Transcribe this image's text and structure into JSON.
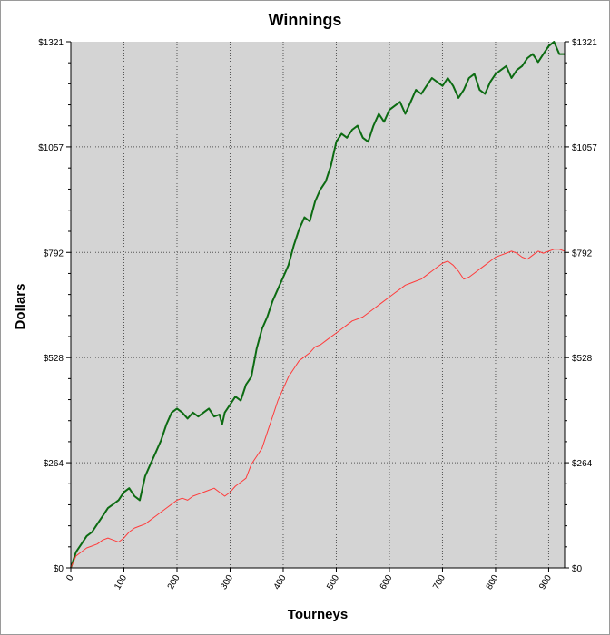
{
  "chart_data": {
    "type": "line",
    "title": "Winnings",
    "xlabel": "Tourneys",
    "ylabel": "Dollars",
    "xlim": [
      0,
      930
    ],
    "ylim": [
      0,
      1321
    ],
    "x_ticks": [
      0,
      100,
      200,
      300,
      400,
      500,
      600,
      700,
      800,
      900
    ],
    "y_ticks": [
      0,
      264,
      528,
      792,
      1057,
      1321
    ],
    "y_tick_labels": [
      "$0",
      "$264",
      "$528",
      "$792",
      "$1057",
      "$1321"
    ],
    "grid": true,
    "plot_background": "#d4d4d4",
    "series": [
      {
        "color": "#0c6b12",
        "x": [
          0,
          10,
          20,
          30,
          40,
          50,
          60,
          70,
          80,
          90,
          100,
          110,
          120,
          130,
          140,
          150,
          160,
          170,
          180,
          190,
          200,
          210,
          220,
          230,
          240,
          250,
          260,
          270,
          280,
          285,
          290,
          300,
          310,
          320,
          330,
          340,
          350,
          360,
          370,
          380,
          390,
          400,
          410,
          420,
          430,
          440,
          450,
          460,
          470,
          480,
          490,
          500,
          510,
          520,
          530,
          540,
          550,
          560,
          570,
          580,
          590,
          600,
          610,
          620,
          630,
          640,
          650,
          660,
          670,
          680,
          690,
          700,
          710,
          720,
          730,
          740,
          750,
          760,
          770,
          780,
          790,
          800,
          810,
          820,
          830,
          840,
          850,
          860,
          870,
          880,
          890,
          900,
          910,
          920,
          930
        ],
        "values": [
          0,
          40,
          60,
          80,
          90,
          110,
          130,
          150,
          160,
          170,
          190,
          200,
          180,
          170,
          230,
          260,
          290,
          320,
          360,
          390,
          400,
          390,
          375,
          390,
          380,
          390,
          400,
          380,
          385,
          360,
          390,
          410,
          430,
          420,
          460,
          480,
          550,
          600,
          630,
          670,
          700,
          730,
          760,
          810,
          850,
          880,
          870,
          920,
          950,
          970,
          1010,
          1070,
          1090,
          1080,
          1100,
          1110,
          1080,
          1070,
          1110,
          1140,
          1120,
          1150,
          1160,
          1170,
          1140,
          1170,
          1200,
          1190,
          1210,
          1230,
          1220,
          1210,
          1230,
          1210,
          1180,
          1200,
          1230,
          1240,
          1200,
          1190,
          1220,
          1240,
          1250,
          1260,
          1230,
          1250,
          1260,
          1280,
          1290,
          1270,
          1290,
          1310,
          1321,
          1290,
          1290
        ]
      },
      {
        "color": "#ff3b3b",
        "x": [
          0,
          10,
          20,
          30,
          40,
          50,
          60,
          70,
          80,
          90,
          100,
          110,
          120,
          130,
          140,
          150,
          160,
          170,
          180,
          190,
          200,
          210,
          220,
          230,
          240,
          250,
          260,
          270,
          280,
          290,
          300,
          310,
          320,
          330,
          340,
          350,
          360,
          370,
          380,
          390,
          400,
          410,
          420,
          430,
          440,
          450,
          460,
          470,
          480,
          490,
          500,
          510,
          520,
          530,
          540,
          550,
          560,
          570,
          580,
          590,
          600,
          610,
          620,
          630,
          640,
          650,
          660,
          670,
          680,
          690,
          700,
          710,
          720,
          730,
          740,
          750,
          760,
          770,
          780,
          790,
          800,
          810,
          820,
          830,
          840,
          850,
          860,
          870,
          880,
          890,
          900,
          910,
          920,
          930
        ],
        "values": [
          0,
          30,
          40,
          50,
          55,
          60,
          70,
          75,
          70,
          65,
          75,
          90,
          100,
          105,
          110,
          120,
          130,
          140,
          150,
          160,
          170,
          175,
          170,
          180,
          185,
          190,
          195,
          200,
          190,
          180,
          190,
          205,
          215,
          225,
          260,
          280,
          300,
          340,
          380,
          420,
          450,
          480,
          500,
          520,
          530,
          540,
          555,
          560,
          570,
          580,
          590,
          600,
          610,
          620,
          625,
          630,
          640,
          650,
          660,
          670,
          680,
          690,
          700,
          710,
          715,
          720,
          725,
          735,
          745,
          755,
          765,
          770,
          760,
          745,
          725,
          730,
          740,
          750,
          760,
          770,
          780,
          785,
          790,
          795,
          790,
          780,
          775,
          785,
          795,
          790,
          795,
          800,
          800,
          795
        ]
      }
    ]
  }
}
